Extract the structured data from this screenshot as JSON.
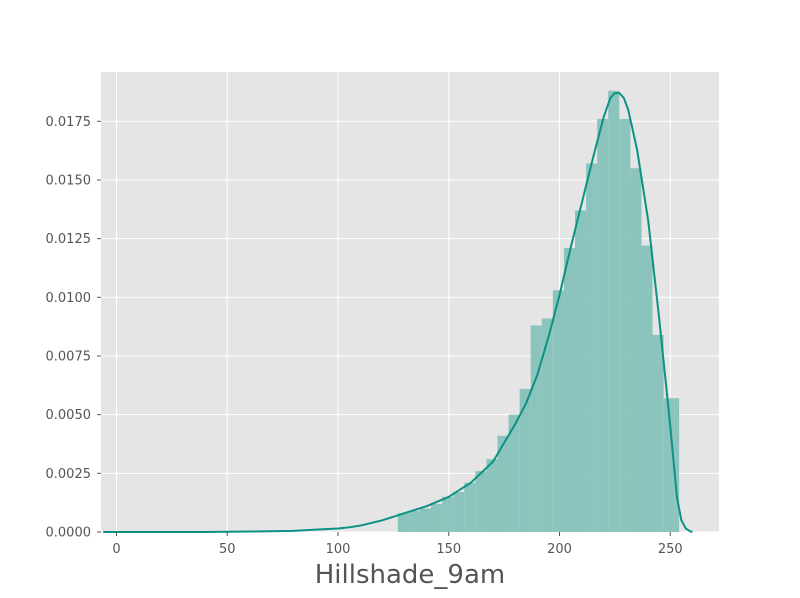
{
  "chart_data": {
    "type": "bar",
    "subtype": "histogram-with-kde",
    "title": "",
    "xlabel": "Hillshade_9am",
    "ylabel": "",
    "xlim": [
      -7,
      272
    ],
    "ylim": [
      0,
      0.0196
    ],
    "x_ticks": [
      0,
      50,
      100,
      150,
      200,
      250
    ],
    "x_tick_labels": [
      "0",
      "50",
      "100",
      "150",
      "200",
      "250"
    ],
    "y_ticks": [
      0,
      0.0025,
      0.005,
      0.0075,
      0.01,
      0.0125,
      0.015,
      0.0175
    ],
    "y_tick_labels": [
      "0.0000",
      "0.0025",
      "0.0050",
      "0.0075",
      "0.0100",
      "0.0125",
      "0.0150",
      "0.0175"
    ],
    "grid": true,
    "legend": "none",
    "colors": {
      "background": "#e5e5e5",
      "grid": "#ffffff",
      "bar": "#8bc4bc",
      "kde_line": "#0b9283",
      "text": "#555555"
    },
    "bins": {
      "edges": [
        127,
        132,
        137,
        142,
        147,
        152,
        157,
        162,
        167,
        172,
        177,
        182,
        187,
        192,
        197,
        202,
        207,
        212,
        217,
        222,
        227,
        232,
        237,
        242,
        247,
        252,
        254
      ],
      "densities": [
        0.0008,
        0.0009,
        0.001,
        0.0012,
        0.0015,
        0.0017,
        0.0021,
        0.0026,
        0.0031,
        0.0041,
        0.005,
        0.0061,
        0.0088,
        0.0091,
        0.0103,
        0.0121,
        0.0137,
        0.0157,
        0.0176,
        0.0188,
        0.0176,
        0.0155,
        0.0122,
        0.0084,
        0.0057,
        0.0057
      ]
    },
    "series": [
      {
        "x": [
          -6,
          0,
          20,
          40,
          60,
          80,
          90,
          100,
          105,
          110,
          120,
          130,
          140,
          150,
          160,
          170,
          180,
          185,
          190,
          195,
          200,
          205,
          210,
          215,
          220,
          223,
          225,
          227,
          229,
          231,
          235,
          240,
          245,
          250,
          253,
          255,
          257,
          259,
          260
        ],
        "y": [
          0.0,
          0.0,
          0.0,
          0.0,
          2e-05,
          5e-05,
          0.0001,
          0.00015,
          0.0002,
          0.00027,
          0.0005,
          0.0008,
          0.0011,
          0.0015,
          0.0021,
          0.003,
          0.0046,
          0.0055,
          0.0067,
          0.0083,
          0.0101,
          0.0121,
          0.014,
          0.0159,
          0.0177,
          0.0185,
          0.0187,
          0.0187,
          0.0185,
          0.018,
          0.0163,
          0.0133,
          0.0091,
          0.0045,
          0.0015,
          0.0005,
          0.00015,
          3e-05,
          0.0
        ]
      }
    ]
  }
}
